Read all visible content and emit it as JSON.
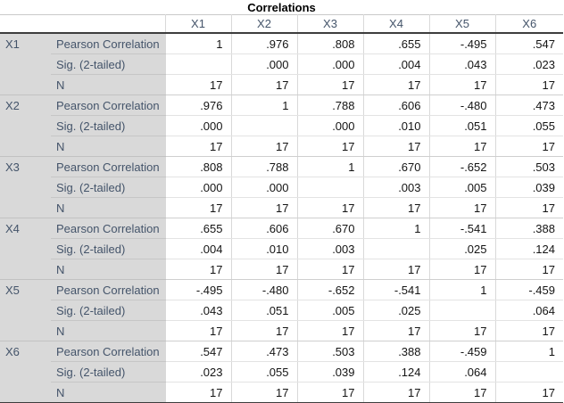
{
  "chart_data": {
    "type": "table",
    "title": "Correlations",
    "columns": [
      "X1",
      "X2",
      "X3",
      "X4",
      "X5",
      "X6"
    ],
    "row_statistics": [
      "Pearson Correlation",
      "Sig. (2-tailed)",
      "N"
    ],
    "groups": [
      {
        "label": "X1",
        "rows": [
          {
            "stat": "Pearson Correlation",
            "values": [
              "1",
              ".976",
              ".808",
              ".655",
              "-.495",
              ".547"
            ]
          },
          {
            "stat": "Sig. (2-tailed)",
            "values": [
              "",
              ".000",
              ".000",
              ".004",
              ".043",
              ".023"
            ]
          },
          {
            "stat": "N",
            "values": [
              "17",
              "17",
              "17",
              "17",
              "17",
              "17"
            ]
          }
        ]
      },
      {
        "label": "X2",
        "rows": [
          {
            "stat": "Pearson Correlation",
            "values": [
              ".976",
              "1",
              ".788",
              ".606",
              "-.480",
              ".473"
            ]
          },
          {
            "stat": "Sig. (2-tailed)",
            "values": [
              ".000",
              "",
              ".000",
              ".010",
              ".051",
              ".055"
            ]
          },
          {
            "stat": "N",
            "values": [
              "17",
              "17",
              "17",
              "17",
              "17",
              "17"
            ]
          }
        ]
      },
      {
        "label": "X3",
        "rows": [
          {
            "stat": "Pearson Correlation",
            "values": [
              ".808",
              ".788",
              "1",
              ".670",
              "-.652",
              ".503"
            ]
          },
          {
            "stat": "Sig. (2-tailed)",
            "values": [
              ".000",
              ".000",
              "",
              ".003",
              ".005",
              ".039"
            ]
          },
          {
            "stat": "N",
            "values": [
              "17",
              "17",
              "17",
              "17",
              "17",
              "17"
            ]
          }
        ]
      },
      {
        "label": "X4",
        "rows": [
          {
            "stat": "Pearson Correlation",
            "values": [
              ".655",
              ".606",
              ".670",
              "1",
              "-.541",
              ".388"
            ]
          },
          {
            "stat": "Sig. (2-tailed)",
            "values": [
              ".004",
              ".010",
              ".003",
              "",
              ".025",
              ".124"
            ]
          },
          {
            "stat": "N",
            "values": [
              "17",
              "17",
              "17",
              "17",
              "17",
              "17"
            ]
          }
        ]
      },
      {
        "label": "X5",
        "rows": [
          {
            "stat": "Pearson Correlation",
            "values": [
              "-.495",
              "-.480",
              "-.652",
              "-.541",
              "1",
              "-.459"
            ]
          },
          {
            "stat": "Sig. (2-tailed)",
            "values": [
              ".043",
              ".051",
              ".005",
              ".025",
              "",
              ".064"
            ]
          },
          {
            "stat": "N",
            "values": [
              "17",
              "17",
              "17",
              "17",
              "17",
              "17"
            ]
          }
        ]
      },
      {
        "label": "X6",
        "rows": [
          {
            "stat": "Pearson Correlation",
            "values": [
              ".547",
              ".473",
              ".503",
              ".388",
              "-.459",
              "1"
            ]
          },
          {
            "stat": "Sig. (2-tailed)",
            "values": [
              ".023",
              ".055",
              ".039",
              ".124",
              ".064",
              ""
            ]
          },
          {
            "stat": "N",
            "values": [
              "17",
              "17",
              "17",
              "17",
              "17",
              "17"
            ]
          }
        ]
      }
    ],
    "layout": {
      "label_column_widths": [
        57,
        128
      ],
      "data_column_width": 74,
      "colors": {
        "label_background": "#d9d9d9",
        "label_text": "#44546A",
        "value_text": "#141414",
        "light_border": "#d9d9d9",
        "dark_border": "#3d3d3d"
      }
    }
  }
}
